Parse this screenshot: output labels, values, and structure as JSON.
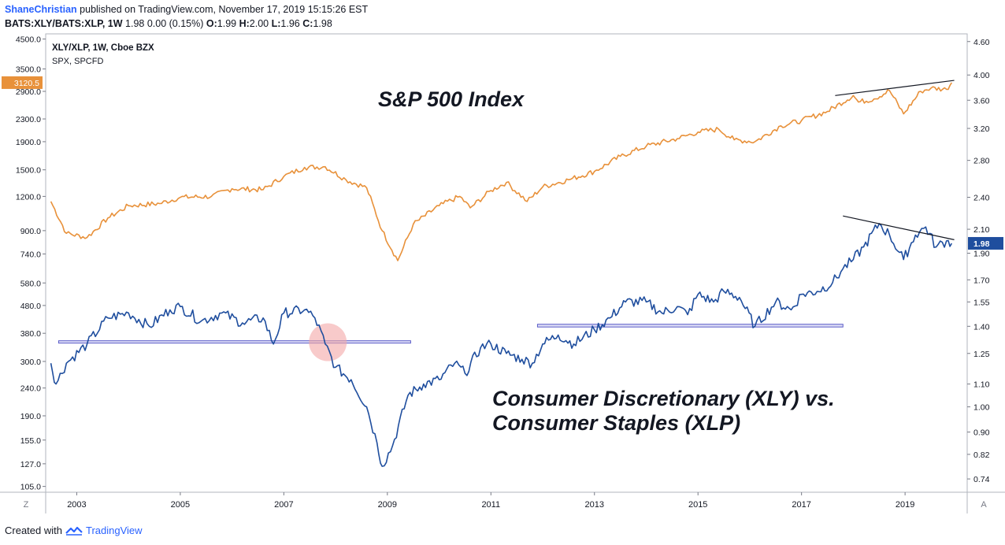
{
  "header": {
    "author": "ShaneChristian",
    "published_text": "published on TradingView.com, November 17, 2019 15:15:26 EST",
    "symbol_line_bold": "BATS:XLY/BATS:XLP, 1W",
    "symbol_line_values": " 1.98 0.00 (0.15%) ",
    "ohlc": [
      {
        "k": "O:",
        "v": "1.99"
      },
      {
        "k": "H:",
        "v": "2.00"
      },
      {
        "k": "L:",
        "v": "1.96"
      },
      {
        "k": "C:",
        "v": "1.98"
      }
    ]
  },
  "legend": {
    "line1": "XLY/XLP, 1W, Cboe BZX",
    "line2": "SPX, SPCFD"
  },
  "annotations": {
    "spx_title": "S&P 500 Index",
    "ratio_title_line1": "Consumer Discretionary (XLY) vs.",
    "ratio_title_line2": "Consumer Staples (XLP)"
  },
  "footer": {
    "created_with": "Created with",
    "brand": "TradingView"
  },
  "buttons": {
    "left": "Z",
    "right": "A"
  },
  "colors": {
    "spx": "#e8913a",
    "ratio": "#1f4e9e",
    "support": "#5a5cc8",
    "highlight": "#f4a6a6",
    "trendline": "#131722"
  },
  "chart_data": {
    "type": "line",
    "x_ticks": [
      "2003",
      "2005",
      "2007",
      "2009",
      "2011",
      "2013",
      "2015",
      "2017",
      "2019"
    ],
    "xlim": [
      2002.4,
      2020.2
    ],
    "left_axis": {
      "ticks": [
        "105.0",
        "127.0",
        "155.0",
        "190.0",
        "240.0",
        "300.0",
        "380.0",
        "480.0",
        "580.0",
        "740.0",
        "900.0",
        "1200.0",
        "1500.0",
        "1900.0",
        "2300.0",
        "2900.0",
        "3500.0",
        "4500.0"
      ],
      "last_value": "3120.5",
      "scale": "log"
    },
    "right_axis": {
      "ticks": [
        "0.74",
        "0.82",
        "0.90",
        "1.00",
        "1.10",
        "1.25",
        "1.40",
        "1.55",
        "1.70",
        "1.90",
        "2.10",
        "2.40",
        "2.80",
        "3.20",
        "3.60",
        "4.00",
        "4.60"
      ],
      "last_value": "1.98",
      "scale": "log"
    },
    "series": [
      {
        "name": "SPX",
        "axis": "left",
        "x": [
          2002.5,
          2002.8,
          2003.2,
          2003.6,
          2004.0,
          2004.6,
          2005.0,
          2005.6,
          2006.0,
          2006.6,
          2007.0,
          2007.4,
          2007.8,
          2008.2,
          2008.6,
          2008.9,
          2009.2,
          2009.5,
          2010.0,
          2010.4,
          2010.6,
          2011.0,
          2011.3,
          2011.7,
          2012.0,
          2012.5,
          2013.0,
          2013.5,
          2014.0,
          2014.6,
          2015.0,
          2015.4,
          2015.7,
          2016.1,
          2016.6,
          2017.0,
          2017.5,
          2018.0,
          2018.1,
          2018.4,
          2018.7,
          2018.97,
          2019.3,
          2019.5,
          2019.8,
          2019.9
        ],
        "values": [
          1150,
          880,
          850,
          1000,
          1110,
          1130,
          1190,
          1200,
          1280,
          1270,
          1420,
          1530,
          1540,
          1380,
          1290,
          900,
          700,
          950,
          1110,
          1200,
          1090,
          1260,
          1350,
          1150,
          1300,
          1380,
          1480,
          1680,
          1830,
          1950,
          2060,
          2110,
          1930,
          1900,
          2170,
          2270,
          2450,
          2800,
          2650,
          2720,
          2920,
          2400,
          2900,
          2980,
          2950,
          3120
        ]
      },
      {
        "name": "XLY/XLP",
        "axis": "right",
        "x": [
          2002.5,
          2002.6,
          2002.8,
          2003.2,
          2003.6,
          2004.0,
          2004.4,
          2004.8,
          2005.0,
          2005.4,
          2005.8,
          2006.2,
          2006.6,
          2006.8,
          2007.0,
          2007.4,
          2007.6,
          2007.8,
          2008.0,
          2008.3,
          2008.6,
          2008.8,
          2008.9,
          2009.1,
          2009.4,
          2009.7,
          2010.0,
          2010.3,
          2010.5,
          2010.8,
          2011.0,
          2011.3,
          2011.6,
          2011.8,
          2012.0,
          2012.3,
          2012.6,
          2013.0,
          2013.3,
          2013.6,
          2014.0,
          2014.3,
          2014.6,
          2014.8,
          2015.0,
          2015.3,
          2015.5,
          2015.8,
          2016.1,
          2016.5,
          2016.8,
          2017.0,
          2017.3,
          2017.6,
          2017.8,
          2018.0,
          2018.2,
          2018.5,
          2018.7,
          2018.97,
          2019.2,
          2019.4,
          2019.6,
          2019.8,
          2019.9
        ],
        "values": [
          1.2,
          1.1,
          1.2,
          1.3,
          1.45,
          1.48,
          1.4,
          1.5,
          1.52,
          1.43,
          1.48,
          1.42,
          1.45,
          1.3,
          1.48,
          1.5,
          1.45,
          1.3,
          1.18,
          1.12,
          1.0,
          0.86,
          0.78,
          0.85,
          1.05,
          1.1,
          1.12,
          1.2,
          1.15,
          1.28,
          1.3,
          1.25,
          1.22,
          1.2,
          1.3,
          1.35,
          1.3,
          1.38,
          1.45,
          1.55,
          1.55,
          1.48,
          1.52,
          1.47,
          1.6,
          1.55,
          1.62,
          1.58,
          1.4,
          1.55,
          1.5,
          1.6,
          1.62,
          1.68,
          1.78,
          1.85,
          1.95,
          2.15,
          2.05,
          1.85,
          2.05,
          2.12,
          1.95,
          2.0,
          1.98
        ]
      }
    ],
    "trend_lines": [
      {
        "axis": "left",
        "x": [
          2017.65,
          2019.95
        ],
        "values": [
          2800,
          3180
        ]
      },
      {
        "axis": "right",
        "x": [
          2017.8,
          2019.95
        ],
        "values": [
          2.22,
          2.01
        ]
      }
    ],
    "support_zones": [
      {
        "axis": "right",
        "x": [
          2002.65,
          2009.45
        ],
        "values": [
          1.305,
          1.318
        ]
      },
      {
        "axis": "right",
        "x": [
          2011.9,
          2017.8
        ],
        "values": [
          1.396,
          1.412
        ]
      }
    ],
    "highlight": {
      "axis": "right",
      "x": 2007.85,
      "value": 1.31
    }
  }
}
